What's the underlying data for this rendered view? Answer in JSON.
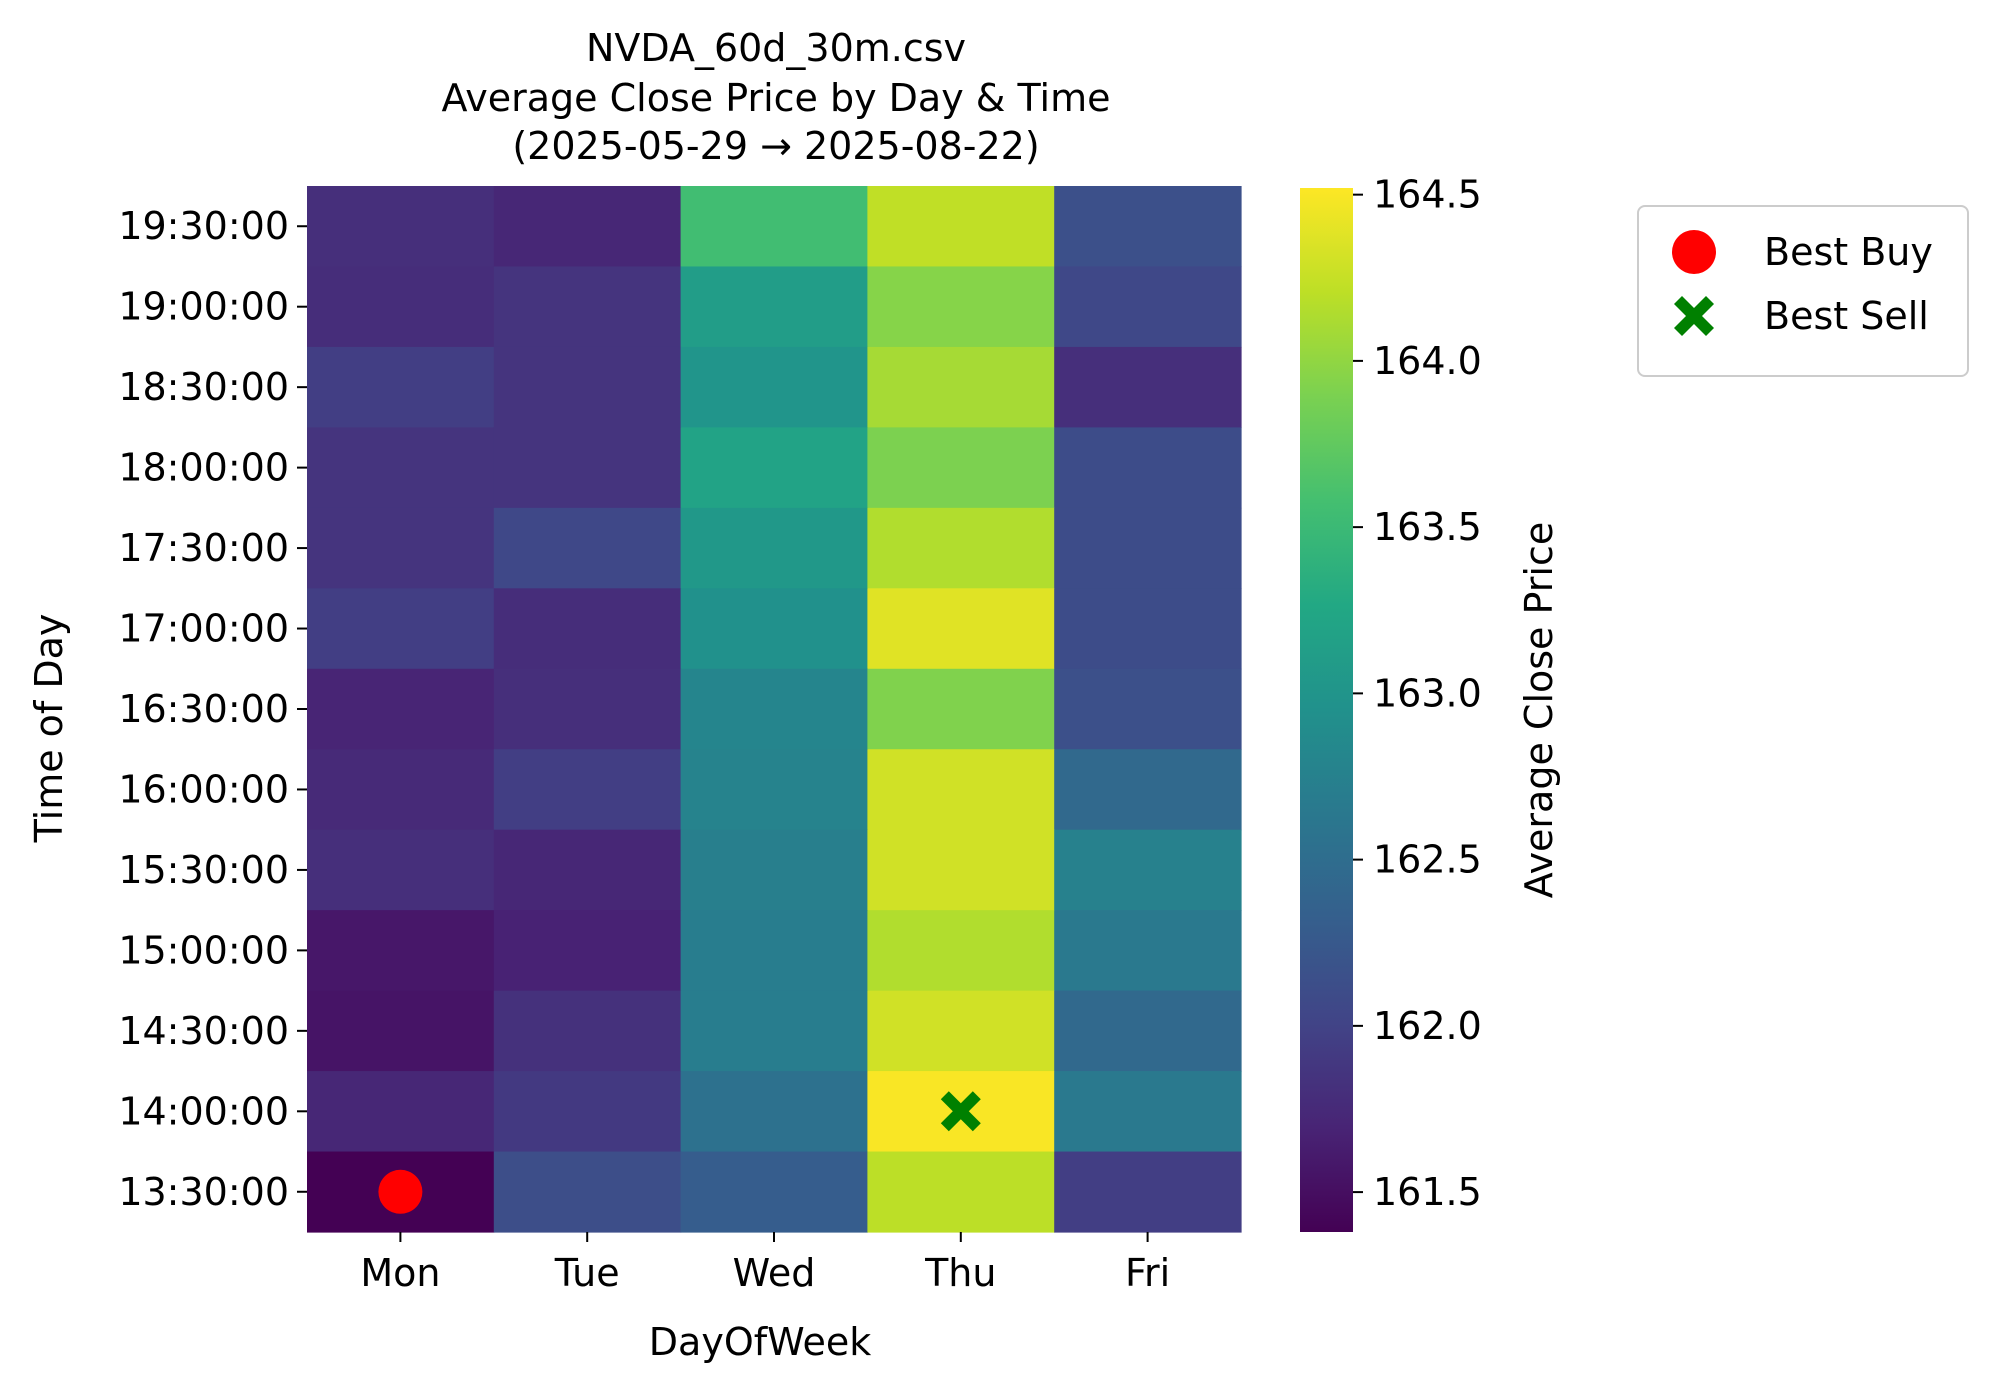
{
  "title_lines": [
    "NVDA_60d_30m.csv",
    "Average Close Price by Day & Time",
    "(2025-05-29 → 2025-08-22)"
  ],
  "chart_data": {
    "type": "heatmap",
    "title": "NVDA_60d_30m.csv\nAverage Close Price by Day & Time\n(2025-05-29 → 2025-08-22)",
    "xlabel": "DayOfWeek",
    "ylabel": "Time of Day",
    "x_categories": [
      "Mon",
      "Tue",
      "Wed",
      "Thu",
      "Fri"
    ],
    "y_categories": [
      "19:30:00",
      "19:00:00",
      "18:30:00",
      "18:00:00",
      "17:30:00",
      "17:00:00",
      "16:30:00",
      "16:00:00",
      "15:30:00",
      "15:00:00",
      "14:30:00",
      "14:00:00",
      "13:30:00"
    ],
    "values": [
      [
        161.8,
        161.72,
        163.55,
        164.22,
        162.15
      ],
      [
        161.78,
        161.85,
        163.12,
        163.95,
        162.05
      ],
      [
        161.95,
        161.85,
        163.0,
        164.1,
        161.8
      ],
      [
        161.85,
        161.85,
        163.2,
        163.9,
        162.1
      ],
      [
        161.85,
        162.05,
        163.05,
        164.15,
        162.1
      ],
      [
        161.95,
        161.78,
        162.95,
        164.38,
        162.1
      ],
      [
        161.7,
        161.8,
        162.8,
        163.92,
        162.15
      ],
      [
        161.75,
        161.95,
        162.78,
        164.3,
        162.45
      ],
      [
        161.8,
        161.72,
        162.72,
        164.3,
        162.75
      ],
      [
        161.58,
        161.68,
        162.7,
        164.15,
        162.65
      ],
      [
        161.55,
        161.82,
        162.7,
        164.3,
        162.45
      ],
      [
        161.72,
        161.9,
        162.55,
        164.5,
        162.65
      ],
      [
        161.38,
        162.12,
        162.3,
        164.2,
        161.95
      ]
    ],
    "colorbar": {
      "label": "Average Close Price",
      "min": 161.38,
      "max": 164.52,
      "ticks": [
        161.5,
        162.0,
        162.5,
        163.0,
        163.5,
        164.0,
        164.5
      ],
      "tick_labels": [
        "161.5",
        "162.0",
        "162.5",
        "163.0",
        "163.5",
        "164.0",
        "164.5"
      ],
      "colormap": "viridis"
    },
    "markers": [
      {
        "label": "Best Buy",
        "day": "Mon",
        "time": "13:30:00",
        "shape": "circle",
        "color": "#ff0000"
      },
      {
        "label": "Best Sell",
        "day": "Thu",
        "time": "14:00:00",
        "shape": "x",
        "color": "#008000"
      }
    ],
    "legend_position": "outside-right"
  }
}
